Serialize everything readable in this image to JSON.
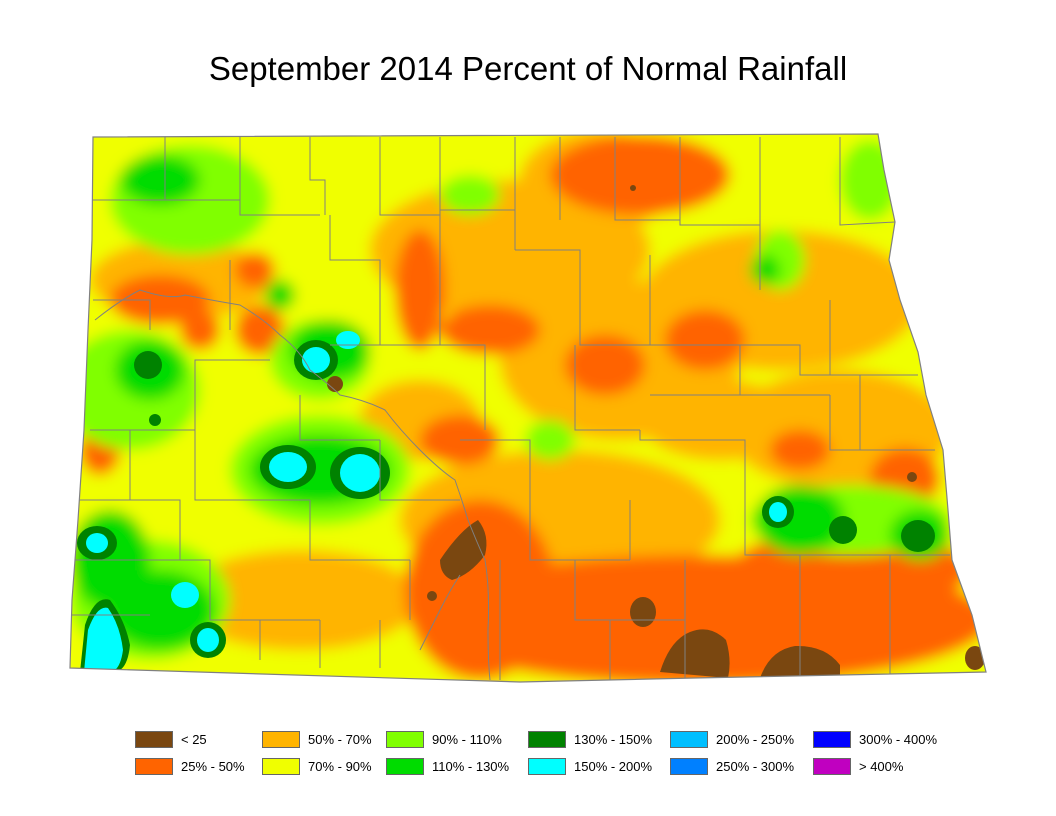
{
  "title": "September 2014 Percent of Normal Rainfall",
  "legend": {
    "items": [
      {
        "label": "< 25",
        "color": "#7a4710"
      },
      {
        "label": "25% - 50%",
        "color": "#ff6400"
      },
      {
        "label": "50% - 70%",
        "color": "#ffb400"
      },
      {
        "label": "70% - 90%",
        "color": "#f0ff00"
      },
      {
        "label": "90% - 110%",
        "color": "#80ff00"
      },
      {
        "label": "110% - 130%",
        "color": "#00dc00"
      },
      {
        "label": "130% - 150%",
        "color": "#008200"
      },
      {
        "label": "150% - 200%",
        "color": "#00ffff"
      },
      {
        "label": "200% - 250%",
        "color": "#00bfff"
      },
      {
        "label": "250% - 300%",
        "color": "#0080ff"
      },
      {
        "label": "300% - 400%",
        "color": "#0000ff"
      },
      {
        "label": "> 400%",
        "color": "#c000c0"
      }
    ]
  },
  "map": {
    "region": "North Dakota",
    "county_line_color": "#808080"
  }
}
